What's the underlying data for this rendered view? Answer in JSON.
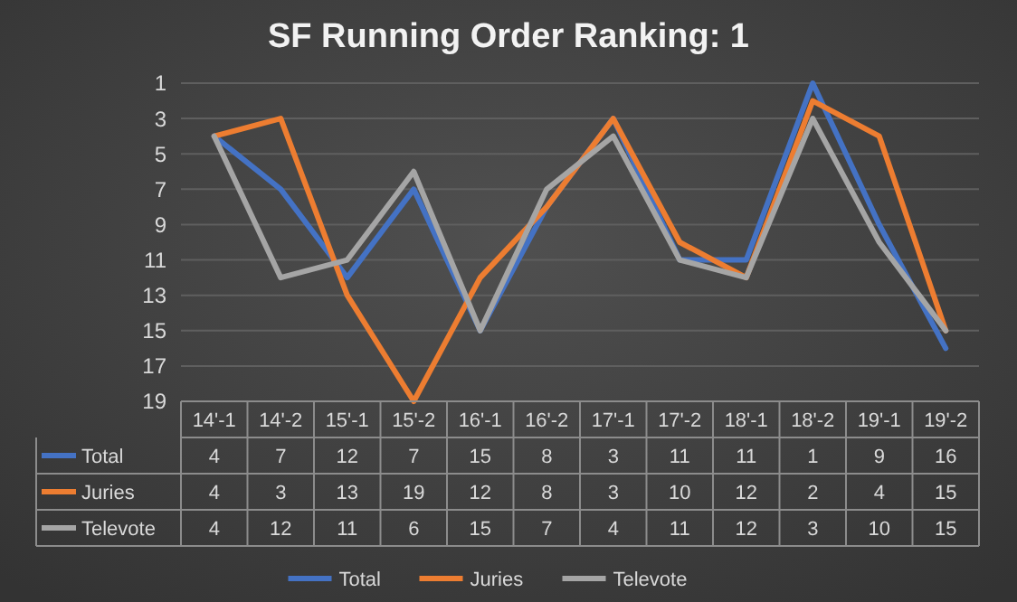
{
  "chart_data": {
    "type": "line",
    "title": "SF Running Order Ranking: 1",
    "categories": [
      "14'-1",
      "14'-2",
      "15'-1",
      "15'-2",
      "16'-1",
      "16'-2",
      "17'-1",
      "17'-2",
      "18'-1",
      "18'-2",
      "19'-1",
      "19'-2"
    ],
    "series": [
      {
        "name": "Total",
        "color": "#4472c4",
        "values": [
          4,
          7,
          12,
          7,
          15,
          8,
          3,
          11,
          11,
          1,
          9,
          16
        ]
      },
      {
        "name": "Juries",
        "color": "#ed7d31",
        "values": [
          4,
          3,
          13,
          19,
          12,
          8,
          3,
          10,
          12,
          2,
          4,
          15
        ]
      },
      {
        "name": "Televote",
        "color": "#a5a5a5",
        "values": [
          4,
          12,
          11,
          6,
          15,
          7,
          4,
          11,
          12,
          3,
          10,
          15
        ]
      }
    ],
    "ylim": [
      19,
      1
    ],
    "yticks": [
      1,
      3,
      5,
      7,
      9,
      11,
      13,
      15,
      17,
      19
    ],
    "grid": "y",
    "legend": "bottom",
    "data_labels": true,
    "marker": "none",
    "line_style": "solid"
  }
}
